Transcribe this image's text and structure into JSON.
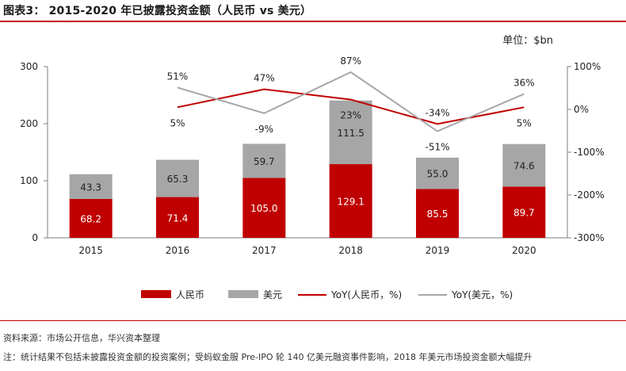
{
  "title": "图表3：  2015-2020 年已披露投资金额（人民币  vs  美元）",
  "unit": "单位：$bn",
  "source": "资料来源：市场公开信息，华兴资本整理",
  "note": "注：统计结果不包括未披露投资金额的投资案例；受蚂蚁金服 Pre-IPO 轮 140 亿美元融资事件影响，2018 年美元市场投资金额大幅提升",
  "colors": {
    "rmb": "#c00000",
    "usd": "#a6a6a6",
    "axis": "#7f7f7f",
    "rule": "#c00000"
  },
  "chart_data": {
    "type": "bar",
    "stacked": true,
    "categories": [
      "2015",
      "2016",
      "2017",
      "2018",
      "2019",
      "2020"
    ],
    "series": [
      {
        "name": "人民币",
        "values": [
          68.2,
          71.4,
          105.0,
          129.1,
          85.5,
          89.7
        ],
        "labels": [
          "68.2",
          "71.4",
          "105.0",
          "129.1",
          "85.5",
          "89.7"
        ]
      },
      {
        "name": "美元",
        "values": [
          43.3,
          65.3,
          59.7,
          111.5,
          55.0,
          74.6
        ],
        "labels": [
          "43.3",
          "65.3",
          "59.7",
          "111.5",
          "55.0",
          "74.6"
        ]
      }
    ],
    "line_series": [
      {
        "name": "YoY(人民币，%)",
        "axis": "secondary",
        "values": [
          null,
          5,
          47,
          23,
          -34,
          5
        ],
        "labels": [
          "",
          "5%",
          "47%",
          "23%",
          "-34%",
          "5%"
        ]
      },
      {
        "name": "YoY(美元，%)",
        "axis": "secondary",
        "values": [
          null,
          51,
          -9,
          87,
          -51,
          36
        ],
        "labels": [
          "",
          "51%",
          "-9%",
          "87%",
          "-51%",
          "36%"
        ]
      }
    ],
    "ylim": [
      0,
      300
    ],
    "yticks": [
      "0",
      "100",
      "200",
      "300"
    ],
    "y2lim": [
      -300,
      100
    ],
    "y2ticks": [
      "-300%",
      "-200%",
      "-100%",
      "0%",
      "100%"
    ],
    "legend": [
      "人民币",
      "美元",
      "YoY(人民币，%)",
      "YoY(美元，%)"
    ],
    "legend_position": "bottom"
  }
}
